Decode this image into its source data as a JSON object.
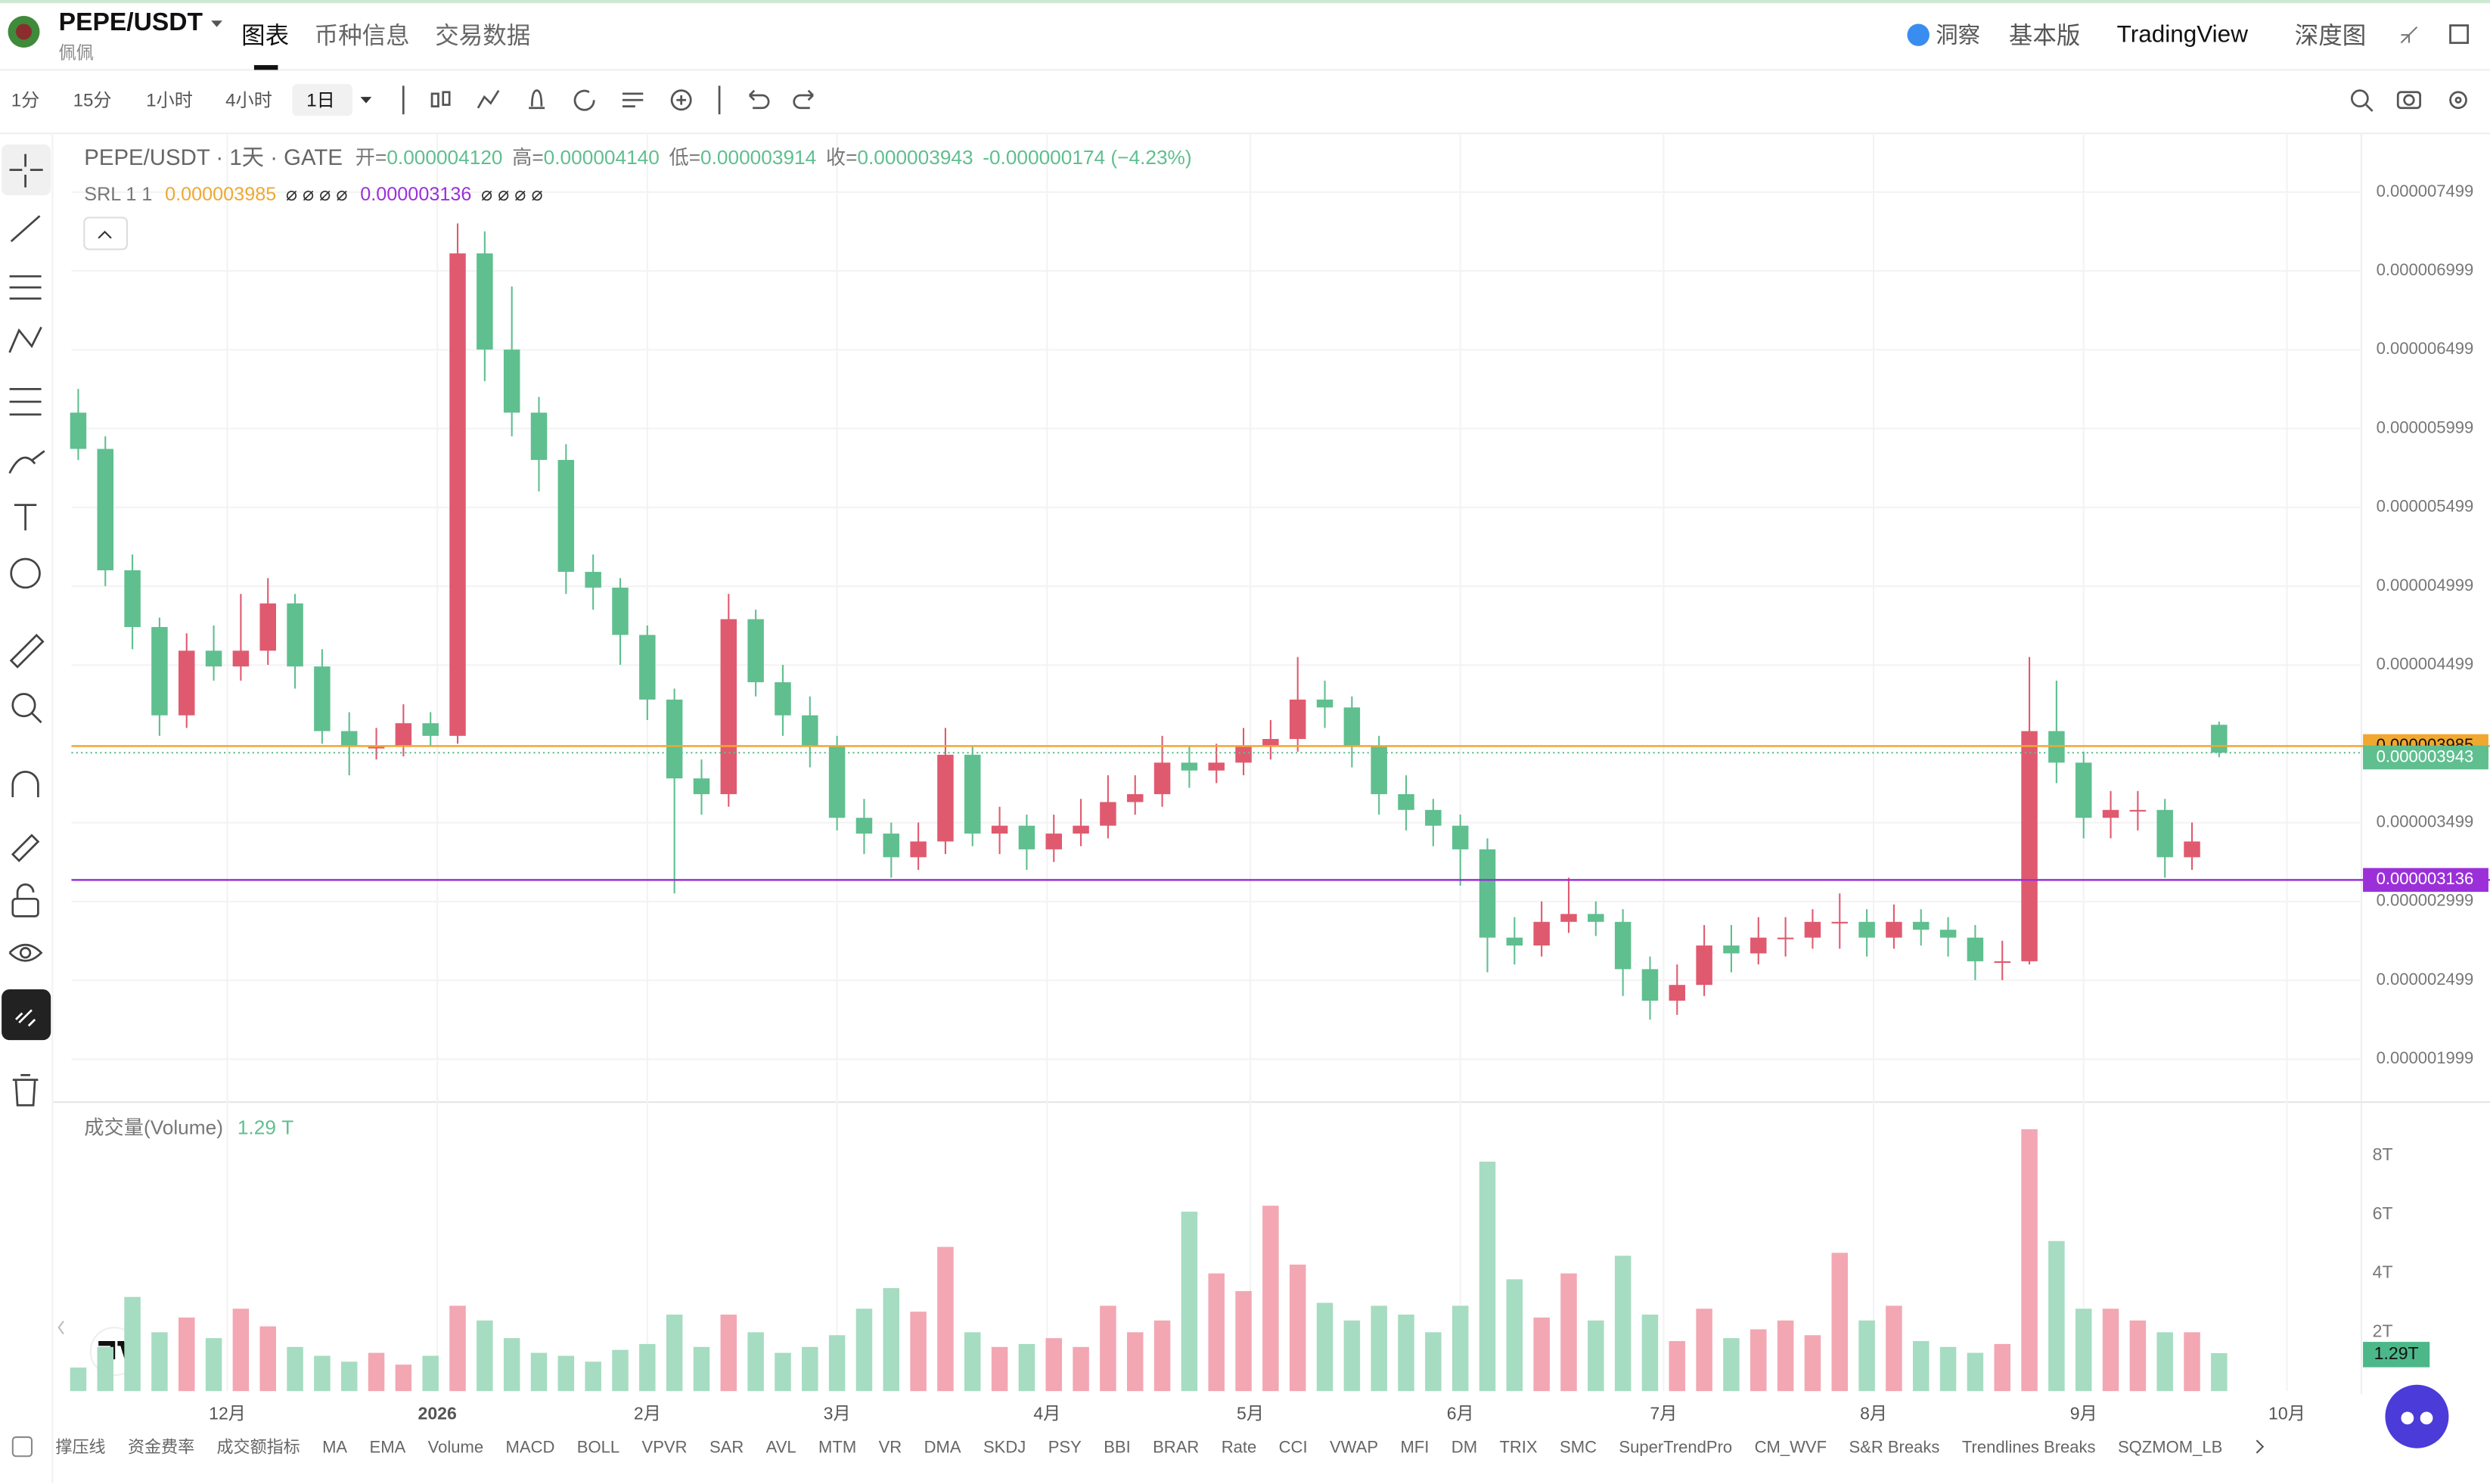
{
  "header": {
    "symbol": "PEPE/USDT",
    "name": "佩佩",
    "tabs": [
      "图表",
      "币种信息",
      "交易数据"
    ],
    "right": [
      "洞察",
      "基本版",
      "TradingView",
      "深度图"
    ]
  },
  "toolbar": {
    "intervals": [
      "1分",
      "15分",
      "1小时",
      "4小时",
      "1日"
    ]
  },
  "chart_data": {
    "type": "candlestick",
    "legend": {
      "symbol": "PEPE/USDT · 1天 · GATE",
      "ohlc": [
        {
          "label": "开=",
          "value": "0.000004120"
        },
        {
          "label": "高=",
          "value": "0.000004140"
        },
        {
          "label": "低=",
          "value": "0.000003914"
        },
        {
          "label": "收=",
          "value": "0.000003943"
        }
      ],
      "change": "-0.000000174 (−4.23%)"
    },
    "indicator": {
      "name": "SRL 1 1",
      "lines": [
        {
          "value": 3.985e-06,
          "color": "#f0a830",
          "flags": "⌀ ⌀ ⌀ ⌀"
        },
        {
          "value": 3.136e-06,
          "color": "#9b30d9",
          "flags": "⌀ ⌀ ⌀ ⌀"
        }
      ]
    },
    "up_color": "#e05a6f",
    "down_color": "#5fbf8f",
    "up_volume_color": "#f2a7b3",
    "down_volume_color": "#a6dcc2",
    "x": [
      1,
      5,
      9,
      13,
      17,
      21,
      25,
      29,
      33,
      37,
      41,
      45,
      49,
      53,
      57,
      61,
      65,
      69,
      73,
      77,
      81,
      85,
      89,
      93,
      97,
      101,
      105,
      109,
      113,
      117,
      121,
      125,
      129,
      133,
      137,
      141,
      145,
      149,
      153,
      157,
      161,
      165,
      169,
      173,
      177,
      181,
      185,
      189,
      193,
      197,
      201,
      205,
      209,
      213,
      217,
      221,
      225,
      229,
      233,
      237,
      241,
      245,
      249,
      253,
      257,
      261,
      265,
      269,
      273,
      277,
      281,
      285,
      289,
      293,
      297,
      301,
      305,
      309,
      313,
      317
    ],
    "open": [
      6.1e-06,
      5.87e-06,
      5.1e-06,
      4.74e-06,
      4.18e-06,
      4.59e-06,
      4.49e-06,
      4.59e-06,
      4.89e-06,
      4.49e-06,
      4.08e-06,
      3.98e-06,
      3.98e-06,
      4.13e-06,
      4.05e-06,
      7.11e-06,
      6.5e-06,
      6.1e-06,
      5.8e-06,
      5.09e-06,
      4.99e-06,
      4.69e-06,
      4.28e-06,
      3.78e-06,
      3.68e-06,
      4.79e-06,
      4.39e-06,
      4.18e-06,
      3.98e-06,
      3.53e-06,
      3.43e-06,
      3.28e-06,
      3.38e-06,
      3.93e-06,
      3.43e-06,
      3.48e-06,
      3.33e-06,
      3.43e-06,
      3.48e-06,
      3.63e-06,
      3.68e-06,
      3.88e-06,
      3.83e-06,
      3.88e-06,
      3.98e-06,
      4.03e-06,
      4.28e-06,
      4.23e-06,
      3.98e-06,
      3.68e-06,
      3.58e-06,
      3.48e-06,
      3.33e-06,
      2.77e-06,
      2.72e-06,
      2.87e-06,
      2.92e-06,
      2.87e-06,
      2.57e-06,
      2.37e-06,
      2.47e-06,
      2.72e-06,
      2.67e-06,
      2.77e-06,
      2.77e-06,
      2.87e-06,
      2.87e-06,
      2.77e-06,
      2.87e-06,
      2.82e-06,
      2.77e-06,
      2.62e-06,
      2.62e-06,
      4.08e-06,
      3.88e-06,
      3.53e-06,
      3.58e-06,
      3.58e-06,
      3.28e-06,
      4.12e-06
    ],
    "high": [
      6.25e-06,
      5.95e-06,
      5.2e-06,
      4.8e-06,
      4.7e-06,
      4.75e-06,
      4.95e-06,
      5.05e-06,
      4.95e-06,
      4.6e-06,
      4.2e-06,
      4.1e-06,
      4.25e-06,
      4.2e-06,
      7.3e-06,
      7.25e-06,
      6.9e-06,
      6.2e-06,
      5.9e-06,
      5.2e-06,
      5.05e-06,
      4.75e-06,
      4.35e-06,
      3.9e-06,
      4.95e-06,
      4.85e-06,
      4.5e-06,
      4.3e-06,
      4.05e-06,
      3.65e-06,
      3.5e-06,
      3.5e-06,
      4.1e-06,
      3.98e-06,
      3.6e-06,
      3.55e-06,
      3.55e-06,
      3.65e-06,
      3.8e-06,
      3.8e-06,
      4.05e-06,
      3.98e-06,
      4e-06,
      4.1e-06,
      4.15e-06,
      4.55e-06,
      4.4e-06,
      4.3e-06,
      4.05e-06,
      3.8e-06,
      3.65e-06,
      3.55e-06,
      3.4e-06,
      2.9e-06,
      3e-06,
      3.15e-06,
      3e-06,
      2.95e-06,
      2.65e-06,
      2.6e-06,
      2.85e-06,
      2.85e-06,
      2.9e-06,
      2.9e-06,
      2.95e-06,
      3.05e-06,
      2.95e-06,
      2.98e-06,
      2.95e-06,
      2.9e-06,
      2.85e-06,
      2.75e-06,
      4.55e-06,
      4.4e-06,
      3.95e-06,
      3.7e-06,
      3.7e-06,
      3.65e-06,
      3.5e-06,
      4.14e-06
    ],
    "low": [
      5.8e-06,
      5e-06,
      4.6e-06,
      4.05e-06,
      4.1e-06,
      4.4e-06,
      4.4e-06,
      4.5e-06,
      4.35e-06,
      4e-06,
      3.8e-06,
      3.9e-06,
      3.92e-06,
      3.98e-06,
      4e-06,
      6.3e-06,
      5.95e-06,
      5.6e-06,
      4.95e-06,
      4.85e-06,
      4.5e-06,
      4.15e-06,
      3.05e-06,
      3.55e-06,
      3.6e-06,
      4.3e-06,
      4.05e-06,
      3.85e-06,
      3.45e-06,
      3.3e-06,
      3.15e-06,
      3.2e-06,
      3.3e-06,
      3.35e-06,
      3.3e-06,
      3.2e-06,
      3.25e-06,
      3.35e-06,
      3.4e-06,
      3.55e-06,
      3.6e-06,
      3.72e-06,
      3.75e-06,
      3.8e-06,
      3.9e-06,
      3.95e-06,
      4.1e-06,
      3.85e-06,
      3.55e-06,
      3.45e-06,
      3.35e-06,
      3.1e-06,
      2.55e-06,
      2.6e-06,
      2.65e-06,
      2.8e-06,
      2.78e-06,
      2.4e-06,
      2.25e-06,
      2.28e-06,
      2.4e-06,
      2.55e-06,
      2.6e-06,
      2.65e-06,
      2.7e-06,
      2.7e-06,
      2.65e-06,
      2.7e-06,
      2.72e-06,
      2.65e-06,
      2.5e-06,
      2.5e-06,
      2.6e-06,
      3.75e-06,
      3.4e-06,
      3.4e-06,
      3.45e-06,
      3.15e-06,
      3.2e-06,
      3.914e-06
    ],
    "close": [
      5.87e-06,
      5.1e-06,
      4.74e-06,
      4.18e-06,
      4.59e-06,
      4.49e-06,
      4.59e-06,
      4.89e-06,
      4.49e-06,
      4.08e-06,
      3.98e-06,
      3.98e-06,
      4.13e-06,
      4.05e-06,
      7.11e-06,
      6.5e-06,
      6.1e-06,
      5.8e-06,
      5.09e-06,
      4.99e-06,
      4.69e-06,
      4.28e-06,
      3.78e-06,
      3.68e-06,
      4.79e-06,
      4.39e-06,
      4.18e-06,
      3.98e-06,
      3.53e-06,
      3.43e-06,
      3.28e-06,
      3.38e-06,
      3.93e-06,
      3.43e-06,
      3.48e-06,
      3.33e-06,
      3.43e-06,
      3.48e-06,
      3.63e-06,
      3.68e-06,
      3.88e-06,
      3.83e-06,
      3.88e-06,
      3.98e-06,
      4.03e-06,
      4.28e-06,
      4.23e-06,
      3.98e-06,
      3.68e-06,
      3.58e-06,
      3.48e-06,
      3.33e-06,
      2.77e-06,
      2.72e-06,
      2.87e-06,
      2.92e-06,
      2.87e-06,
      2.57e-06,
      2.37e-06,
      2.47e-06,
      2.72e-06,
      2.67e-06,
      2.77e-06,
      2.77e-06,
      2.87e-06,
      2.87e-06,
      2.77e-06,
      2.87e-06,
      2.82e-06,
      2.77e-06,
      2.62e-06,
      2.62e-06,
      4.08e-06,
      3.88e-06,
      3.53e-06,
      3.58e-06,
      3.58e-06,
      3.28e-06,
      3.38e-06,
      3.943e-06
    ],
    "xlim": [
      0,
      338
    ],
    "xticks": [
      {
        "value": 23,
        "label": "12月"
      },
      {
        "value": 54,
        "label": "2026"
      },
      {
        "value": 85,
        "label": "2月"
      },
      {
        "value": 113,
        "label": "3月"
      },
      {
        "value": 144,
        "label": "4月"
      },
      {
        "value": 174,
        "label": "5月"
      },
      {
        "value": 205,
        "label": "6月"
      },
      {
        "value": 235,
        "label": "7月"
      },
      {
        "value": 266,
        "label": "8月"
      },
      {
        "value": 297,
        "label": "9月"
      },
      {
        "value": 327,
        "label": "10月"
      }
    ],
    "ylim": [
      1.737e-06,
      7.831e-06
    ],
    "yticks": [
      7.499e-06,
      6.999e-06,
      6.499e-06,
      5.999e-06,
      5.499e-06,
      4.999e-06,
      4.499e-06,
      3.499e-06,
      2.999e-06,
      2.499e-06,
      1.999e-06
    ],
    "grid": true,
    "volume": {
      "title": "成交量(Volume)",
      "last": "1.29 T",
      "badge": "1.29T",
      "badge_color": "#4cb88a",
      "values": [
        0.8,
        1.5,
        3.2,
        2.0,
        2.5,
        1.8,
        2.8,
        2.2,
        1.5,
        1.2,
        1.0,
        1.3,
        0.9,
        1.2,
        2.9,
        2.4,
        1.8,
        1.3,
        1.2,
        1.0,
        1.4,
        1.6,
        2.6,
        1.5,
        2.6,
        2.0,
        1.3,
        1.5,
        1.9,
        2.8,
        3.5,
        2.7,
        4.9,
        2.0,
        1.5,
        1.6,
        1.8,
        1.5,
        2.9,
        2.0,
        2.4,
        6.1,
        4.0,
        3.4,
        6.3,
        4.3,
        3.0,
        2.4,
        2.9,
        2.6,
        2.0,
        2.9,
        7.8,
        3.8,
        2.5,
        4.0,
        2.4,
        4.6,
        2.6,
        1.7,
        2.8,
        1.8,
        2.1,
        2.4,
        1.9,
        4.7,
        2.4,
        2.9,
        1.7,
        1.5,
        1.3,
        1.6,
        8.9,
        5.1,
        2.8,
        2.8,
        2.4,
        2.0,
        2.0,
        1.29
      ],
      "ylim": [
        0,
        9.5
      ],
      "yticks": [
        {
          "value": 2,
          "label": "2T"
        },
        {
          "value": 4,
          "label": "4T"
        },
        {
          "value": 6,
          "label": "6T"
        },
        {
          "value": 8,
          "label": "8T"
        }
      ]
    }
  },
  "indicators_bar": [
    "撑压线",
    "资金费率",
    "成交额指标",
    "MA",
    "EMA",
    "Volume",
    "MACD",
    "BOLL",
    "VPVR",
    "SAR",
    "AVL",
    "MTM",
    "VR",
    "DMA",
    "SKDJ",
    "PSY",
    "BBI",
    "BRAR",
    "Rate",
    "CCI",
    "VWAP",
    "MFI",
    "DM",
    "TRIX",
    "SMC",
    "SuperTrendPro",
    "CM_WVF",
    "S&R Breaks",
    "Trendlines Breaks",
    "SQZMOM_LB"
  ]
}
